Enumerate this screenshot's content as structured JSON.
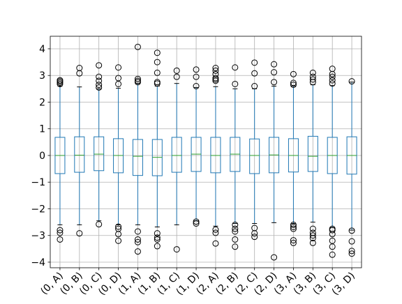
{
  "chart_data": {
    "type": "box",
    "categories": [
      "(0, A)",
      "(0, B)",
      "(0, C)",
      "(0, D)",
      "(1, A)",
      "(1, B)",
      "(1, C)",
      "(1, D)",
      "(2, A)",
      "(2, B)",
      "(2, C)",
      "(2, D)",
      "(3, A)",
      "(3, B)",
      "(3, C)",
      "(3, D)"
    ],
    "boxes": [
      {
        "q1": -0.68,
        "median": 0.0,
        "q3": 0.68,
        "whislo": -2.6,
        "whishi": 2.6,
        "fliers": [
          2.68,
          2.73,
          2.78,
          2.82,
          -2.8,
          -2.9,
          -3.15
        ]
      },
      {
        "q1": -0.63,
        "median": 0.01,
        "q3": 0.7,
        "whislo": -2.6,
        "whishi": 2.57,
        "fliers": [
          3.08,
          3.28,
          -2.92
        ]
      },
      {
        "q1": -0.57,
        "median": 0.05,
        "q3": 0.7,
        "whislo": -2.45,
        "whishi": 2.5,
        "fliers": [
          2.55,
          2.65,
          2.8,
          2.95,
          3.38,
          -2.58
        ]
      },
      {
        "q1": -0.65,
        "median": 0.0,
        "q3": 0.63,
        "whislo": -2.6,
        "whishi": 2.52,
        "fliers": [
          2.68,
          2.9,
          3.3,
          -2.67,
          -2.75,
          -2.95,
          -3.2
        ]
      },
      {
        "q1": -0.75,
        "median": -0.03,
        "q3": 0.6,
        "whislo": -2.6,
        "whishi": 2.7,
        "fliers": [
          2.75,
          2.8,
          2.87,
          4.07,
          -2.85,
          -3.15,
          -3.25,
          -3.6
        ]
      },
      {
        "q1": -0.76,
        "median": -0.07,
        "q3": 0.6,
        "whislo": -2.68,
        "whishi": 2.6,
        "fliers": [
          2.7,
          2.75,
          3.1,
          3.5,
          3.85,
          -2.92,
          -3.08,
          -3.15,
          -3.4
        ]
      },
      {
        "q1": -0.63,
        "median": 0.0,
        "q3": 0.68,
        "whislo": -2.6,
        "whishi": 2.7,
        "fliers": [
          2.95,
          3.18,
          -3.52
        ]
      },
      {
        "q1": -0.6,
        "median": 0.05,
        "q3": 0.68,
        "whislo": -2.45,
        "whishi": 2.55,
        "fliers": [
          2.6,
          2.95,
          3.22,
          -2.48,
          -2.55
        ]
      },
      {
        "q1": -0.65,
        "median": 0.0,
        "q3": 0.68,
        "whislo": -2.65,
        "whishi": 2.58,
        "fliers": [
          2.8,
          2.85,
          2.9,
          3.05,
          3.18,
          3.28,
          -2.78,
          -2.9,
          -3.3
        ]
      },
      {
        "q1": -0.6,
        "median": 0.05,
        "q3": 0.68,
        "whislo": -2.55,
        "whishi": 2.5,
        "fliers": [
          2.68,
          3.3,
          -2.6,
          -2.75,
          -2.85,
          -3.15,
          -3.42
        ]
      },
      {
        "q1": -0.68,
        "median": 0.0,
        "q3": 0.62,
        "whislo": -2.55,
        "whishi": 2.5,
        "fliers": [
          2.6,
          3.08,
          3.48,
          -2.72,
          -2.92,
          -3.05
        ]
      },
      {
        "q1": -0.65,
        "median": 0.02,
        "q3": 0.68,
        "whislo": -2.52,
        "whishi": 2.6,
        "fliers": [
          2.75,
          3.12,
          3.42,
          -3.82
        ]
      },
      {
        "q1": -0.62,
        "median": 0.0,
        "q3": 0.63,
        "whislo": -2.55,
        "whishi": 2.6,
        "fliers": [
          2.65,
          2.72,
          3.05,
          -2.6,
          -2.68,
          -2.75,
          -3.18,
          -3.28
        ]
      },
      {
        "q1": -0.6,
        "median": -0.03,
        "q3": 0.72,
        "whislo": -2.5,
        "whishi": 2.65,
        "fliers": [
          2.75,
          2.85,
          2.95,
          3.1,
          -2.75,
          -2.9,
          -3.0,
          -3.1,
          -3.28
        ]
      },
      {
        "q1": -0.68,
        "median": 0.0,
        "q3": 0.68,
        "whislo": -2.7,
        "whishi": 2.62,
        "fliers": [
          2.7,
          2.82,
          2.95,
          3.05,
          3.25,
          -2.75,
          -2.8,
          -2.95,
          -3.2,
          -3.42,
          -3.72
        ]
      },
      {
        "q1": -0.7,
        "median": 0.0,
        "q3": 0.7,
        "whislo": -2.8,
        "whishi": 2.75,
        "fliers": [
          2.78,
          -2.82,
          -3.22,
          -3.58,
          -3.68
        ]
      }
    ],
    "ylim": [
      -4.21,
      4.47
    ],
    "yticks": [
      {
        "value": -4,
        "label": "−4"
      },
      {
        "value": -3,
        "label": "−3"
      },
      {
        "value": -2,
        "label": "−2"
      },
      {
        "value": -1,
        "label": "−1"
      },
      0,
      1,
      2,
      3,
      4
    ],
    "grid": true,
    "box_color": "#1f77b4",
    "median_color": "#2ca02c",
    "flier_color": "#000000"
  }
}
